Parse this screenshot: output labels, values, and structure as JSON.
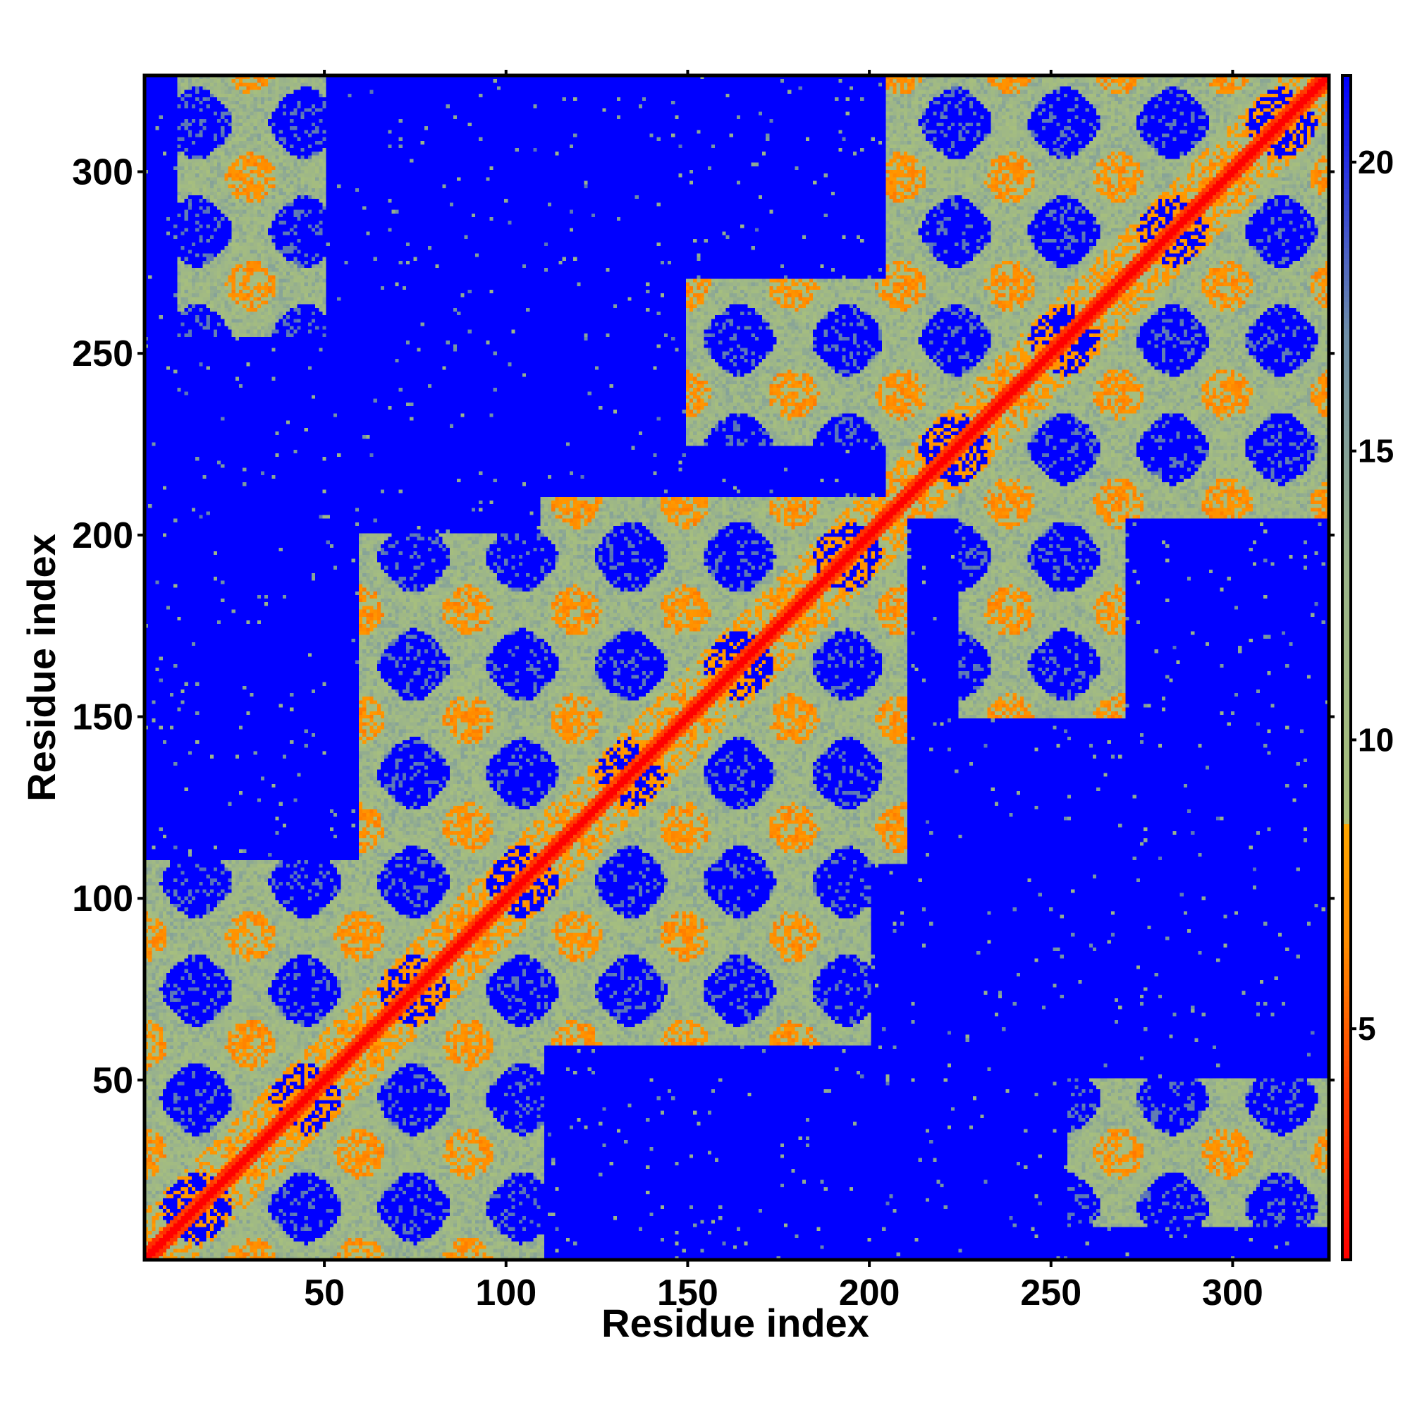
{
  "chart_data": {
    "type": "heatmap",
    "title": "",
    "xlabel": "Residue index",
    "ylabel": "Residue index",
    "n_residues": 326,
    "xlim": [
      1,
      326
    ],
    "ylim": [
      1,
      326
    ],
    "x_ticks": [
      50,
      100,
      150,
      200,
      250,
      300
    ],
    "y_ticks": [
      50,
      100,
      150,
      200,
      250,
      300
    ],
    "x_tick_labels": [
      "50",
      "100",
      "150",
      "200",
      "250",
      "300"
    ],
    "y_tick_labels": [
      "50",
      "100",
      "150",
      "200",
      "250",
      "300"
    ],
    "colorbar": {
      "range": [
        1,
        21.5
      ],
      "ticks": [
        5,
        10,
        15,
        20
      ],
      "tick_labels": [
        "5",
        "10",
        "15",
        "20"
      ],
      "colors": [
        {
          "value": 1,
          "color": "#ff0000"
        },
        {
          "value": 4,
          "color": "#ff4000"
        },
        {
          "value": 6.5,
          "color": "#ff8c00"
        },
        {
          "value": 8.5,
          "color": "#ffa500"
        },
        {
          "value": 8.6,
          "color": "#a8c07c"
        },
        {
          "value": 13,
          "color": "#9bb48a"
        },
        {
          "value": 17,
          "color": "#6f8fa8"
        },
        {
          "value": 21.5,
          "color": "#0000ff"
        }
      ]
    },
    "cutoff_value": 21.5,
    "background_color": "#0000ff",
    "legend_position": "right",
    "grid": false,
    "description_values": {
      "diagonal_value": 1,
      "near_contact_value": 5,
      "medium_contact_value": 12
    },
    "domain_blocks": [
      {
        "start": 1,
        "end": 110
      },
      {
        "start": 60,
        "end": 200
      },
      {
        "start": 110,
        "end": 210
      },
      {
        "start": 205,
        "end": 326
      }
    ],
    "off_diagonal_contact_blocks": [
      {
        "i_range": [
          10,
          50
        ],
        "j_range": [
          255,
          326
        ]
      },
      {
        "i_range": [
          225,
          270
        ],
        "j_range": [
          150,
          210
        ]
      },
      {
        "i_range": [
          255,
          326
        ],
        "j_range": [
          10,
          60
        ]
      },
      {
        "i_range": [
          150,
          210
        ],
        "j_range": [
          225,
          270
        ]
      }
    ]
  }
}
